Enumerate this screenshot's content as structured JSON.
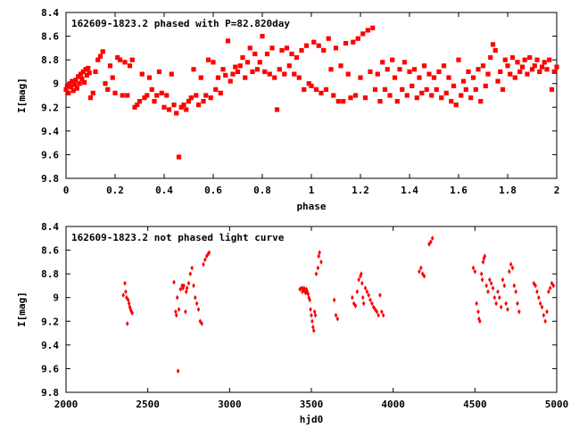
{
  "chart_data": [
    {
      "type": "scatter",
      "title": "162609-1823.2 phased with P=82.820day",
      "xlabel": "phase",
      "ylabel": "I[mag]",
      "xlim": [
        0,
        2
      ],
      "ylim": [
        9.8,
        8.4
      ],
      "y_inverted": true,
      "x_ticks": [
        "0",
        "0.2",
        "0.4",
        "0.6",
        "0.8",
        "1",
        "1.2",
        "1.4",
        "1.6",
        "1.8",
        "2"
      ],
      "y_ticks": [
        "8.4",
        "8.6",
        "8.8",
        "9",
        "9.2",
        "9.4",
        "9.6",
        "9.8"
      ],
      "color": "#ff0000",
      "points": [
        [
          0.0,
          9.05
        ],
        [
          0.005,
          9.02
        ],
        [
          0.01,
          9.08
        ],
        [
          0.015,
          9.0
        ],
        [
          0.02,
          9.03
        ],
        [
          0.025,
          8.98
        ],
        [
          0.03,
          9.06
        ],
        [
          0.035,
          9.01
        ],
        [
          0.04,
          8.97
        ],
        [
          0.045,
          9.04
        ],
        [
          0.05,
          8.94
        ],
        [
          0.055,
          9.0
        ],
        [
          0.06,
          8.92
        ],
        [
          0.065,
          8.96
        ],
        [
          0.07,
          8.9
        ],
        [
          0.075,
          8.99
        ],
        [
          0.08,
          8.88
        ],
        [
          0.085,
          8.93
        ],
        [
          0.09,
          8.87
        ],
        [
          0.095,
          8.91
        ],
        [
          0.1,
          9.12
        ],
        [
          0.11,
          9.08
        ],
        [
          0.12,
          8.9
        ],
        [
          0.13,
          8.8
        ],
        [
          0.14,
          8.77
        ],
        [
          0.15,
          8.73
        ],
        [
          0.16,
          9.0
        ],
        [
          0.17,
          9.05
        ],
        [
          0.18,
          8.85
        ],
        [
          0.19,
          8.95
        ],
        [
          0.2,
          9.08
        ],
        [
          0.21,
          8.78
        ],
        [
          0.22,
          8.8
        ],
        [
          0.23,
          9.1
        ],
        [
          0.24,
          8.82
        ],
        [
          0.25,
          9.1
        ],
        [
          0.26,
          8.85
        ],
        [
          0.27,
          8.8
        ],
        [
          0.28,
          9.2
        ],
        [
          0.29,
          9.18
        ],
        [
          0.3,
          9.15
        ],
        [
          0.31,
          8.92
        ],
        [
          0.32,
          9.12
        ],
        [
          0.33,
          9.1
        ],
        [
          0.34,
          8.95
        ],
        [
          0.35,
          9.05
        ],
        [
          0.36,
          9.15
        ],
        [
          0.37,
          9.1
        ],
        [
          0.38,
          8.9
        ],
        [
          0.39,
          9.08
        ],
        [
          0.4,
          9.2
        ],
        [
          0.41,
          9.1
        ],
        [
          0.42,
          9.22
        ],
        [
          0.43,
          8.92
        ],
        [
          0.44,
          9.18
        ],
        [
          0.45,
          9.25
        ],
        [
          0.46,
          9.62
        ],
        [
          0.47,
          9.2
        ],
        [
          0.48,
          9.18
        ],
        [
          0.49,
          9.22
        ],
        [
          0.5,
          9.15
        ],
        [
          0.51,
          9.12
        ],
        [
          0.52,
          8.88
        ],
        [
          0.53,
          9.1
        ],
        [
          0.54,
          9.18
        ],
        [
          0.55,
          8.95
        ],
        [
          0.56,
          9.15
        ],
        [
          0.57,
          9.1
        ],
        [
          0.58,
          8.8
        ],
        [
          0.59,
          9.12
        ],
        [
          0.6,
          8.82
        ],
        [
          0.61,
          9.05
        ],
        [
          0.62,
          8.95
        ],
        [
          0.63,
          9.08
        ],
        [
          0.64,
          8.88
        ],
        [
          0.65,
          8.93
        ],
        [
          0.66,
          8.64
        ],
        [
          0.67,
          8.98
        ],
        [
          0.68,
          8.92
        ],
        [
          0.69,
          8.86
        ],
        [
          0.7,
          8.9
        ],
        [
          0.71,
          8.85
        ],
        [
          0.72,
          8.78
        ],
        [
          0.73,
          8.95
        ],
        [
          0.74,
          8.82
        ],
        [
          0.75,
          8.7
        ],
        [
          0.76,
          8.9
        ],
        [
          0.77,
          8.75
        ],
        [
          0.78,
          8.88
        ],
        [
          0.79,
          8.82
        ],
        [
          0.8,
          8.6
        ],
        [
          0.81,
          8.9
        ],
        [
          0.82,
          8.75
        ],
        [
          0.83,
          8.92
        ],
        [
          0.84,
          8.7
        ],
        [
          0.85,
          8.95
        ],
        [
          0.86,
          9.22
        ],
        [
          0.87,
          8.88
        ],
        [
          0.88,
          8.72
        ],
        [
          0.89,
          8.92
        ],
        [
          0.9,
          8.7
        ],
        [
          0.91,
          8.85
        ],
        [
          0.92,
          8.75
        ],
        [
          0.93,
          8.92
        ],
        [
          0.94,
          8.78
        ],
        [
          0.95,
          8.95
        ],
        [
          0.96,
          8.72
        ],
        [
          0.97,
          9.05
        ],
        [
          0.98,
          8.68
        ],
        [
          0.99,
          9.0
        ],
        [
          1.0,
          9.02
        ],
        [
          1.01,
          8.65
        ],
        [
          1.02,
          9.05
        ],
        [
          1.03,
          8.68
        ],
        [
          1.04,
          9.08
        ],
        [
          1.05,
          8.72
        ],
        [
          1.06,
          9.05
        ],
        [
          1.07,
          8.62
        ],
        [
          1.08,
          8.88
        ],
        [
          1.09,
          9.1
        ],
        [
          1.1,
          8.7
        ],
        [
          1.11,
          9.15
        ],
        [
          1.12,
          8.85
        ],
        [
          1.13,
          9.15
        ],
        [
          1.14,
          8.66
        ],
        [
          1.15,
          8.92
        ],
        [
          1.16,
          9.12
        ],
        [
          1.17,
          8.65
        ],
        [
          1.18,
          9.1
        ],
        [
          1.19,
          8.62
        ],
        [
          1.2,
          8.95
        ],
        [
          1.21,
          8.58
        ],
        [
          1.22,
          9.12
        ],
        [
          1.23,
          8.55
        ],
        [
          1.24,
          8.9
        ],
        [
          1.25,
          8.53
        ],
        [
          1.26,
          9.05
        ],
        [
          1.27,
          8.92
        ],
        [
          1.28,
          9.15
        ],
        [
          1.29,
          8.82
        ],
        [
          1.3,
          9.05
        ],
        [
          1.31,
          8.88
        ],
        [
          1.32,
          9.1
        ],
        [
          1.33,
          8.8
        ],
        [
          1.34,
          8.95
        ],
        [
          1.35,
          9.15
        ],
        [
          1.36,
          8.88
        ],
        [
          1.37,
          9.05
        ],
        [
          1.38,
          8.82
        ],
        [
          1.39,
          9.1
        ],
        [
          1.4,
          8.9
        ],
        [
          1.41,
          9.02
        ],
        [
          1.42,
          8.88
        ],
        [
          1.43,
          9.12
        ],
        [
          1.44,
          8.95
        ],
        [
          1.45,
          9.08
        ],
        [
          1.46,
          8.85
        ],
        [
          1.47,
          9.05
        ],
        [
          1.48,
          8.92
        ],
        [
          1.49,
          9.1
        ],
        [
          1.5,
          8.95
        ],
        [
          1.51,
          9.05
        ],
        [
          1.52,
          8.9
        ],
        [
          1.53,
          9.12
        ],
        [
          1.54,
          8.85
        ],
        [
          1.55,
          9.08
        ],
        [
          1.56,
          8.95
        ],
        [
          1.57,
          9.15
        ],
        [
          1.58,
          9.02
        ],
        [
          1.59,
          9.18
        ],
        [
          1.6,
          8.8
        ],
        [
          1.61,
          9.1
        ],
        [
          1.62,
          8.98
        ],
        [
          1.63,
          9.05
        ],
        [
          1.64,
          8.9
        ],
        [
          1.65,
          9.12
        ],
        [
          1.66,
          8.95
        ],
        [
          1.67,
          9.05
        ],
        [
          1.68,
          8.88
        ],
        [
          1.69,
          9.15
        ],
        [
          1.7,
          8.85
        ],
        [
          1.71,
          9.02
        ],
        [
          1.72,
          8.92
        ],
        [
          1.73,
          8.78
        ],
        [
          1.74,
          8.67
        ],
        [
          1.75,
          8.72
        ],
        [
          1.76,
          8.98
        ],
        [
          1.77,
          8.9
        ],
        [
          1.78,
          9.05
        ],
        [
          1.79,
          8.8
        ],
        [
          1.8,
          8.85
        ],
        [
          1.81,
          8.92
        ],
        [
          1.82,
          8.78
        ],
        [
          1.83,
          8.95
        ],
        [
          1.84,
          8.82
        ],
        [
          1.85,
          8.9
        ],
        [
          1.86,
          8.86
        ],
        [
          1.87,
          8.8
        ],
        [
          1.88,
          8.92
        ],
        [
          1.89,
          8.78
        ],
        [
          1.9,
          8.88
        ],
        [
          1.91,
          8.85
        ],
        [
          1.92,
          8.8
        ],
        [
          1.93,
          8.9
        ],
        [
          1.94,
          8.86
        ],
        [
          1.95,
          8.82
        ],
        [
          1.96,
          8.88
        ],
        [
          1.97,
          8.8
        ],
        [
          1.98,
          9.05
        ],
        [
          1.99,
          8.9
        ],
        [
          2.0,
          8.86
        ]
      ]
    },
    {
      "type": "scatter",
      "title": "162609-1823.2 not phased light curve",
      "xlabel": "hjd0",
      "ylabel": "I[mag]",
      "xlim": [
        2000,
        5000
      ],
      "ylim": [
        9.8,
        8.4
      ],
      "y_inverted": true,
      "x_ticks": [
        "2000",
        "2500",
        "3000",
        "3500",
        "4000",
        "4500",
        "5000"
      ],
      "y_ticks": [
        "8.4",
        "8.6",
        "8.8",
        "9",
        "9.2",
        "9.4",
        "9.6",
        "9.8"
      ],
      "color": "#ff0000",
      "points": [
        [
          2350,
          8.98
        ],
        [
          2360,
          8.88
        ],
        [
          2365,
          8.95
        ],
        [
          2370,
          9.0
        ],
        [
          2375,
          9.22
        ],
        [
          2380,
          9.02
        ],
        [
          2385,
          9.05
        ],
        [
          2390,
          9.08
        ],
        [
          2395,
          9.1
        ],
        [
          2400,
          9.12
        ],
        [
          2405,
          9.13
        ],
        [
          2660,
          8.87
        ],
        [
          2670,
          9.12
        ],
        [
          2675,
          9.15
        ],
        [
          2680,
          9.0
        ],
        [
          2685,
          9.62
        ],
        [
          2690,
          9.1
        ],
        [
          2700,
          8.93
        ],
        [
          2710,
          8.9
        ],
        [
          2715,
          8.92
        ],
        [
          2720,
          8.9
        ],
        [
          2730,
          9.12
        ],
        [
          2735,
          8.95
        ],
        [
          2740,
          8.92
        ],
        [
          2750,
          8.88
        ],
        [
          2760,
          8.8
        ],
        [
          2770,
          8.75
        ],
        [
          2780,
          8.9
        ],
        [
          2790,
          9.0
        ],
        [
          2800,
          9.05
        ],
        [
          2810,
          9.1
        ],
        [
          2820,
          9.2
        ],
        [
          2830,
          9.22
        ],
        [
          2840,
          8.72
        ],
        [
          2850,
          8.68
        ],
        [
          2860,
          8.65
        ],
        [
          2870,
          8.63
        ],
        [
          2875,
          8.62
        ],
        [
          3430,
          8.93
        ],
        [
          3440,
          8.92
        ],
        [
          3445,
          8.95
        ],
        [
          3450,
          8.93
        ],
        [
          3455,
          8.92
        ],
        [
          3460,
          8.95
        ],
        [
          3465,
          8.96
        ],
        [
          3470,
          8.93
        ],
        [
          3475,
          8.95
        ],
        [
          3480,
          8.97
        ],
        [
          3485,
          9.0
        ],
        [
          3490,
          9.02
        ],
        [
          3495,
          9.1
        ],
        [
          3500,
          9.15
        ],
        [
          3505,
          9.2
        ],
        [
          3510,
          9.25
        ],
        [
          3515,
          9.28
        ],
        [
          3520,
          9.12
        ],
        [
          3525,
          9.15
        ],
        [
          3530,
          8.8
        ],
        [
          3540,
          8.75
        ],
        [
          3545,
          8.65
        ],
        [
          3550,
          8.62
        ],
        [
          3560,
          8.7
        ],
        [
          3640,
          9.02
        ],
        [
          3650,
          9.15
        ],
        [
          3660,
          9.18
        ],
        [
          3750,
          9.0
        ],
        [
          3760,
          9.05
        ],
        [
          3770,
          9.07
        ],
        [
          3780,
          8.95
        ],
        [
          3790,
          8.85
        ],
        [
          3800,
          8.82
        ],
        [
          3805,
          8.8
        ],
        [
          3810,
          8.88
        ],
        [
          3815,
          9.0
        ],
        [
          3820,
          9.05
        ],
        [
          3830,
          8.92
        ],
        [
          3840,
          8.95
        ],
        [
          3850,
          8.98
        ],
        [
          3860,
          9.02
        ],
        [
          3870,
          9.05
        ],
        [
          3880,
          9.08
        ],
        [
          3890,
          9.1
        ],
        [
          3900,
          9.12
        ],
        [
          3910,
          9.15
        ],
        [
          3920,
          8.98
        ],
        [
          3930,
          9.12
        ],
        [
          3940,
          9.15
        ],
        [
          4160,
          8.78
        ],
        [
          4170,
          8.75
        ],
        [
          4180,
          8.8
        ],
        [
          4190,
          8.82
        ],
        [
          4220,
          8.55
        ],
        [
          4230,
          8.53
        ],
        [
          4240,
          8.5
        ],
        [
          4490,
          8.75
        ],
        [
          4500,
          8.78
        ],
        [
          4510,
          9.05
        ],
        [
          4520,
          9.12
        ],
        [
          4525,
          9.18
        ],
        [
          4530,
          9.2
        ],
        [
          4540,
          8.8
        ],
        [
          4545,
          8.85
        ],
        [
          4550,
          8.7
        ],
        [
          4555,
          8.67
        ],
        [
          4560,
          8.65
        ],
        [
          4570,
          8.9
        ],
        [
          4580,
          8.95
        ],
        [
          4590,
          8.85
        ],
        [
          4600,
          8.88
        ],
        [
          4610,
          8.92
        ],
        [
          4620,
          9.0
        ],
        [
          4630,
          9.05
        ],
        [
          4640,
          8.95
        ],
        [
          4650,
          9.0
        ],
        [
          4660,
          9.08
        ],
        [
          4670,
          8.85
        ],
        [
          4680,
          8.9
        ],
        [
          4690,
          9.05
        ],
        [
          4700,
          9.1
        ],
        [
          4710,
          8.78
        ],
        [
          4720,
          8.72
        ],
        [
          4730,
          8.75
        ],
        [
          4740,
          8.9
        ],
        [
          4750,
          8.95
        ],
        [
          4760,
          9.05
        ],
        [
          4770,
          9.12
        ],
        [
          4860,
          8.88
        ],
        [
          4870,
          8.9
        ],
        [
          4880,
          8.95
        ],
        [
          4890,
          9.0
        ],
        [
          4900,
          9.05
        ],
        [
          4910,
          9.08
        ],
        [
          4920,
          9.15
        ],
        [
          4930,
          9.2
        ],
        [
          4940,
          9.12
        ],
        [
          4950,
          8.95
        ],
        [
          4960,
          8.92
        ],
        [
          4970,
          8.88
        ],
        [
          4980,
          8.9
        ]
      ]
    }
  ]
}
